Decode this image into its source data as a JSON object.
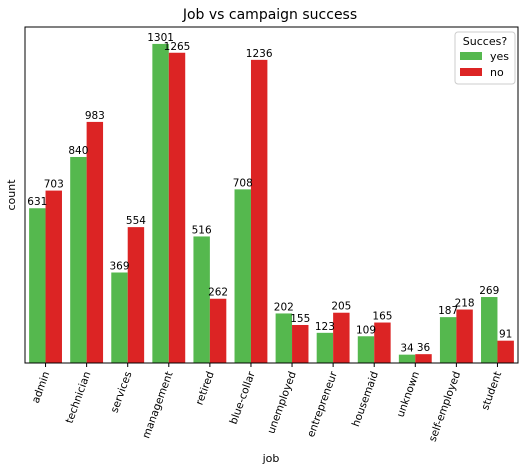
{
  "chart_data": {
    "type": "bar",
    "title": "Job vs campaign success",
    "xlabel": "job",
    "ylabel": "count",
    "ylim": [
      0,
      1370
    ],
    "grid": false,
    "legend_position": "top-right",
    "legend_title": "Succes?",
    "categories": [
      "admin",
      "technician",
      "services",
      "management",
      "retired",
      "blue-collar",
      "unemployed",
      "entrepreneur",
      "housemaid",
      "unknown",
      "self-employed",
      "student"
    ],
    "series": [
      {
        "name": "yes",
        "color": "#55b84e",
        "values": [
          631,
          840,
          369,
          1301,
          516,
          708,
          202,
          123,
          109,
          34,
          187,
          269
        ]
      },
      {
        "name": "no",
        "color": "#dc2424",
        "values": [
          703,
          983,
          554,
          1265,
          262,
          1236,
          155,
          205,
          165,
          36,
          218,
          91
        ]
      }
    ]
  }
}
